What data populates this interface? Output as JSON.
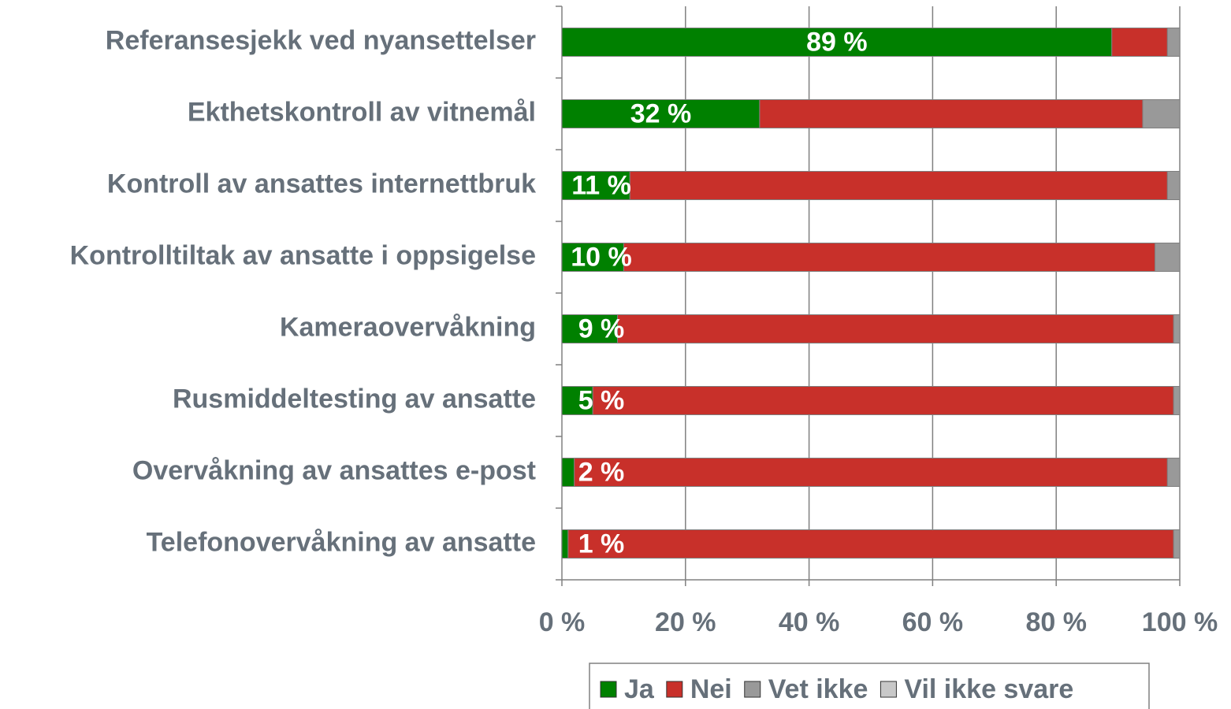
{
  "chart_data": {
    "type": "stacked-bar-horizontal",
    "categories": [
      "Referansesjekk ved nyansettelser",
      "Ekthetskontroll av vitnemål",
      "Kontroll av ansattes internettbruk",
      "Kontrolltiltak av ansatte i oppsigelse",
      "Kameraovervåkning",
      "Rusmiddeltesting av ansatte",
      "Overvåkning av ansattes e-post",
      "Telefonovervåkning av ansatte"
    ],
    "series": [
      {
        "name": "Ja",
        "color": "#008000",
        "values": [
          89,
          32,
          11,
          10,
          9,
          5,
          2,
          1
        ],
        "value_labels": [
          "89 %",
          "32 %",
          "11 %",
          "10 %",
          "9 %",
          "5 %",
          "2 %",
          "1 %"
        ]
      },
      {
        "name": "Nei",
        "color": "#c8302a",
        "values": [
          9,
          62,
          87,
          86,
          90,
          94,
          96,
          98
        ]
      },
      {
        "name": "Vet ikke",
        "color": "#999999",
        "values": [
          2,
          6,
          2,
          4,
          1,
          1,
          2,
          1
        ]
      },
      {
        "name": "Vil ikke svare",
        "color": "#c8c8c8",
        "values": [
          0,
          0,
          0,
          0,
          0,
          0,
          0,
          0
        ]
      }
    ],
    "xlim": [
      0,
      100
    ],
    "xticks": [
      {
        "value": 0,
        "label": "0 %"
      },
      {
        "value": 20,
        "label": "20 %"
      },
      {
        "value": 40,
        "label": "40 %"
      },
      {
        "value": 60,
        "label": "60 %"
      },
      {
        "value": 80,
        "label": "80 %"
      },
      {
        "value": 100,
        "label": "100 %"
      }
    ],
    "grid": true,
    "legend": "bottom"
  }
}
